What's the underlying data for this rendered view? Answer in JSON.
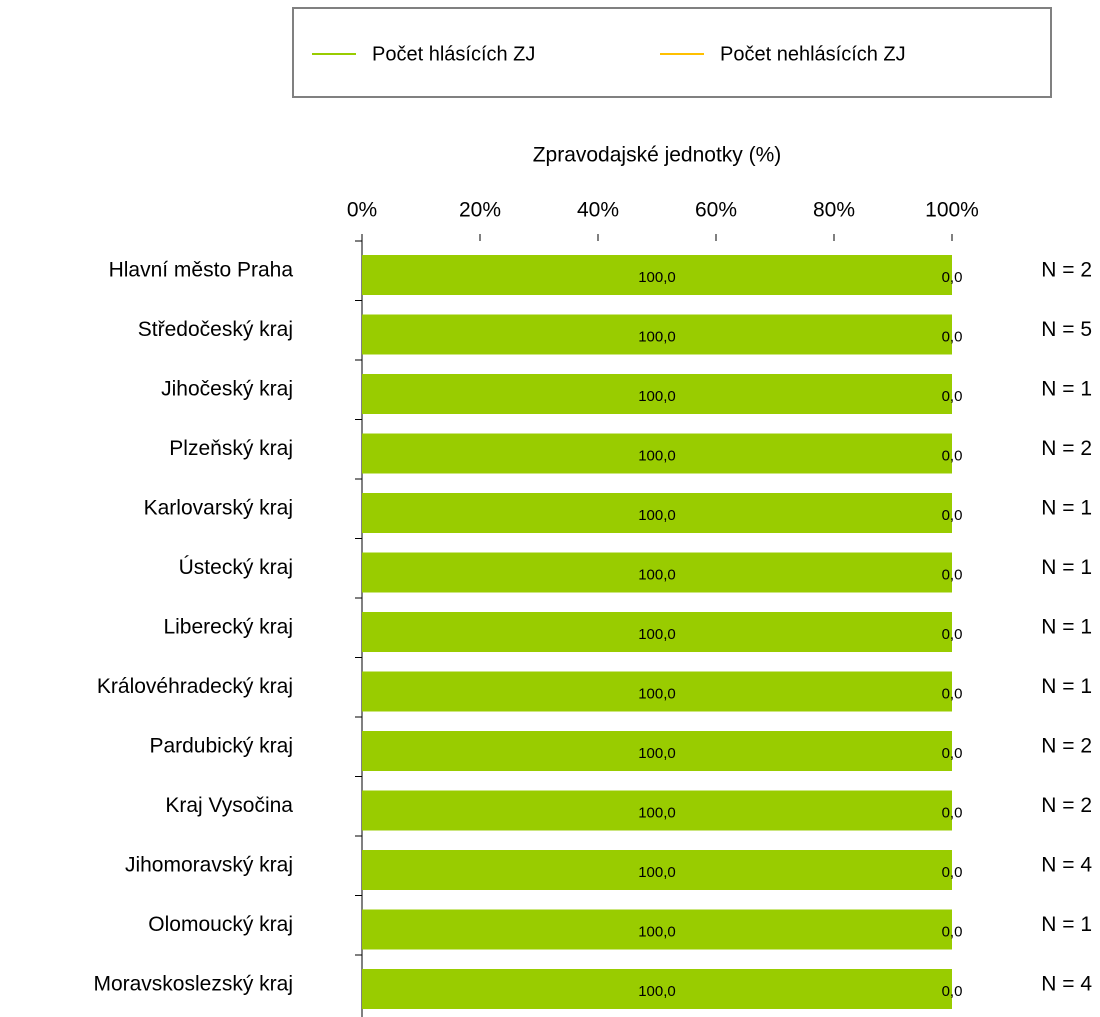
{
  "chart_data": {
    "type": "stacked-barh",
    "x_label": "Zpravodajské jednotky (%)",
    "categories": [
      "Hlavní město Praha",
      "Středočeský kraj",
      "Jihočeský kraj",
      "Plzeňský kraj",
      "Karlovarský kraj",
      "Ústecký kraj",
      "Liberecký kraj",
      "Královéhradecký kraj",
      "Pardubický kraj",
      "Kraj Vysočina",
      "Jihomoravský kraj",
      "Olomoucký kraj",
      "Moravskoslezský kraj"
    ],
    "series": [
      {
        "name": "Počet hlásících ZJ",
        "color": "#99cc00",
        "values": [
          100,
          100,
          100,
          100,
          100,
          100,
          100,
          100,
          100,
          100,
          100,
          100,
          100
        ],
        "value_labels": [
          "100,0",
          "100,0",
          "100,0",
          "100,0",
          "100,0",
          "100,0",
          "100,0",
          "100,0",
          "100,0",
          "100,0",
          "100,0",
          "100,0",
          "100,0"
        ]
      },
      {
        "name": "Počet nehlásících ZJ",
        "color": "#ffc000",
        "values": [
          0,
          0,
          0,
          0,
          0,
          0,
          0,
          0,
          0,
          0,
          0,
          0,
          0
        ],
        "value_labels": [
          "0,0",
          "0,0",
          "0,0",
          "0,0",
          "0,0",
          "0,0",
          "0,0",
          "0,0",
          "0,0",
          "0,0",
          "0,0",
          "0,0",
          "0,0"
        ]
      }
    ],
    "annotations": [
      "N = 2",
      "N = 5",
      "N = 1",
      "N = 2",
      "N = 1",
      "N = 1",
      "N = 1",
      "N = 1",
      "N = 2",
      "N = 2",
      "N = 4",
      "N = 1",
      "N = 4"
    ],
    "xlim": [
      0,
      100
    ],
    "xticks": [
      {
        "value": 0,
        "label": "0%"
      },
      {
        "value": 20,
        "label": "20%"
      },
      {
        "value": 40,
        "label": "40%"
      },
      {
        "value": 60,
        "label": "60%"
      },
      {
        "value": 80,
        "label": "80%"
      },
      {
        "value": 100,
        "label": "100%"
      }
    ],
    "legend": "top"
  }
}
